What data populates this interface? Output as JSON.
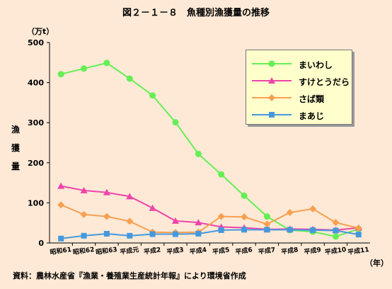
{
  "title": "図２－１－８　魚種別漁獲量の推移",
  "source": "資料：農林水産省『漁業・養殖業生産統計年報』により環境省作成",
  "chart_data": {
    "type": "line",
    "ylabel": "漁獲量",
    "yunit": "（万t）",
    "xunit": "（年）",
    "ylim": [
      0,
      500
    ],
    "yticks": [
      0,
      100,
      200,
      300,
      400,
      500
    ],
    "grid": false,
    "legend_position": "top-right",
    "categories": [
      "昭和61",
      "昭和62",
      "昭和63",
      "平成元",
      "平成2",
      "平成3",
      "平成4",
      "平成5",
      "平成6",
      "平成7",
      "平成8",
      "平成9",
      "平成10",
      "平成11"
    ],
    "series": [
      {
        "name": "まいわし",
        "color": "#66ee55",
        "marker": "circle",
        "values": [
          421,
          435,
          449,
          410,
          368,
          301,
          222,
          171,
          118,
          66,
          32,
          28,
          16,
          35
        ]
      },
      {
        "name": "すけとうだら",
        "color": "#ee44aa",
        "marker": "triangle",
        "values": [
          142,
          131,
          126,
          116,
          87,
          55,
          51,
          40,
          38,
          34,
          35,
          34,
          32,
          38
        ]
      },
      {
        "name": "さば類",
        "color": "#f8a050",
        "marker": "diamond",
        "values": [
          95,
          71,
          66,
          54,
          27,
          26,
          27,
          66,
          65,
          47,
          76,
          85,
          51,
          37
        ]
      },
      {
        "name": "まあじ",
        "color": "#4499dd",
        "marker": "square",
        "values": [
          11,
          18,
          23,
          18,
          22,
          22,
          23,
          32,
          33,
          33,
          33,
          32,
          31,
          21
        ]
      }
    ]
  }
}
